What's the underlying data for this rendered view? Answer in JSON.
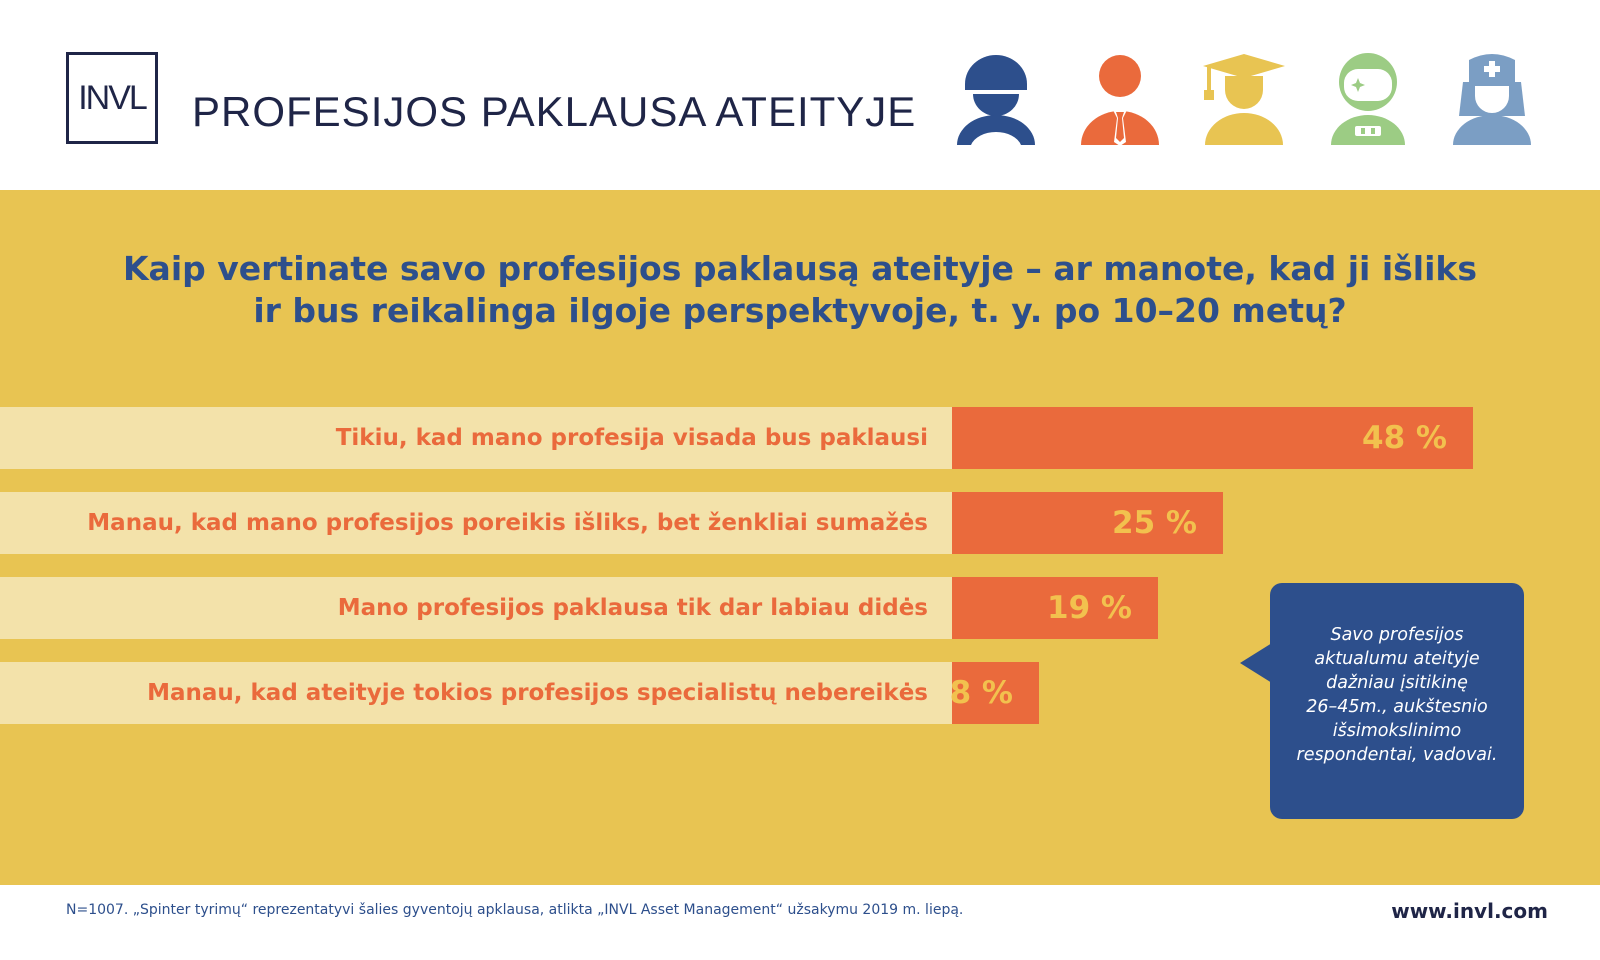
{
  "header": {
    "logo_text": "INVL",
    "title": "PROFESIJOS PAKLAUSA ATEITYJE",
    "icons": [
      {
        "name": "construction-worker-icon",
        "color": "#2d4f8c"
      },
      {
        "name": "business-person-icon",
        "color": "#ea6a3c"
      },
      {
        "name": "graduate-icon",
        "color": "#e8c452"
      },
      {
        "name": "astronaut-icon",
        "color": "#9ccc84"
      },
      {
        "name": "nurse-icon",
        "color": "#7b9ec4"
      }
    ]
  },
  "colors": {
    "background": "#e8c452",
    "bar": "#ea6a3c",
    "label_background": "#f3e2aa",
    "value_text": "#f2c14e",
    "question_text": "#2d4f8c",
    "callout": "#2d4f8c"
  },
  "chart_data": {
    "type": "bar",
    "orientation": "horizontal",
    "title_line1": "Kaip vertinate savo profesijos paklausą ateityje – ar manote, kad ji išliks",
    "title_line2": "ir bus reikalinga ilgoje perspektyvoje, t. y. po 10–20 metų?",
    "categories": [
      "Tikiu, kad mano profesija visada bus paklausi",
      "Manau, kad mano profesijos poreikis išliks, bet ženkliai sumažės",
      "Mano profesijos paklausa tik dar labiau didės",
      "Manau, kad ateityje tokios profesijos specialistų nebereikės"
    ],
    "values": [
      48,
      25,
      19,
      8
    ],
    "value_labels": [
      "48 %",
      "25 %",
      "19 %",
      "8 %"
    ],
    "xlim": [
      0,
      48
    ],
    "grid": false,
    "legend": "none"
  },
  "callout": {
    "lines": [
      "Savo profesijos",
      "aktualumu ateityje",
      "dažniau įsitikinę",
      "26–45m., aukštesnio",
      "išsimokslinimo",
      "respondentai, vadovai."
    ]
  },
  "footer": {
    "note": "N=1007.  „Spinter tyrimų“ reprezentatyvi šalies gyventojų apklausa, atlikta „INVL Asset Management“ užsakymu 2019 m. liepą.",
    "website": "www.invl.com"
  }
}
